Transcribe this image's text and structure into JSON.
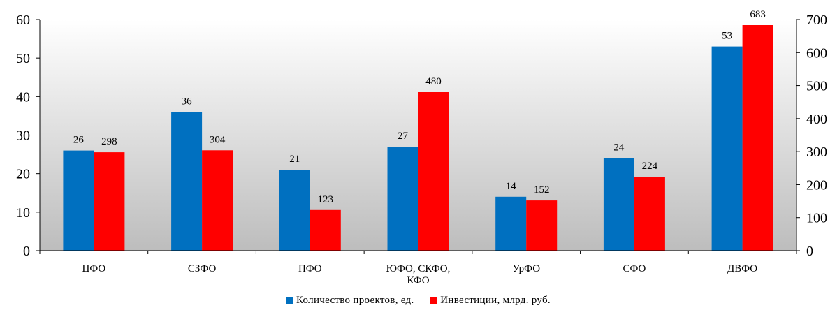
{
  "chart_data": {
    "type": "bar",
    "categories": [
      "ЦФО",
      "СЗФО",
      "ПФО",
      "ЮФО, СКФО,\nКФО",
      "УрФО",
      "СФО",
      "ДВФО"
    ],
    "series": [
      {
        "name": "Количество проектов, ед.",
        "axis": "left",
        "color": "#0070C0",
        "values": [
          26,
          36,
          21,
          27,
          14,
          24,
          53
        ]
      },
      {
        "name": "Инвестиции, млрд. руб.",
        "axis": "right",
        "color": "#FF0000",
        "values": [
          298,
          304,
          123,
          480,
          152,
          224,
          683
        ]
      }
    ],
    "y_left": {
      "lim": [
        0,
        60
      ],
      "ticks": [
        "0",
        "10",
        "20",
        "30",
        "40",
        "50",
        "60"
      ]
    },
    "y_right": {
      "lim": [
        0,
        700
      ],
      "ticks": [
        "0",
        "100",
        "200",
        "300",
        "400",
        "500",
        "600",
        "700"
      ]
    },
    "data_labels": true,
    "grid": false,
    "background": "gradient-gray",
    "legend_position": "bottom"
  }
}
